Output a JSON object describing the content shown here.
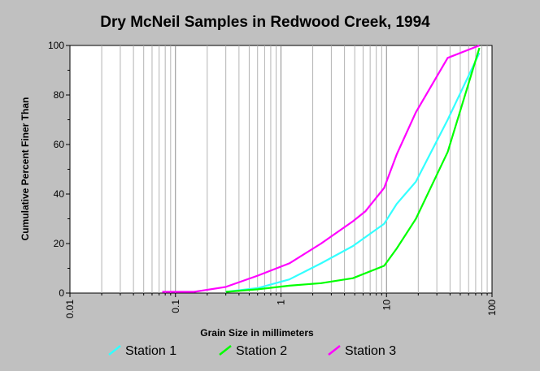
{
  "chart_data": {
    "type": "line",
    "title": "Dry McNeil Samples in Redwood Creek, 1994",
    "xlabel": "Grain Size in millimeters",
    "ylabel": "Cumulative Percent Finer Than",
    "x_scale": "log",
    "xlim": [
      0.01,
      100
    ],
    "ylim": [
      0,
      100
    ],
    "x_ticks": [
      "0.01",
      "0.1",
      "1",
      "10",
      "100"
    ],
    "y_ticks": [
      "0",
      "20",
      "40",
      "60",
      "80",
      "100"
    ],
    "grid": "vertical",
    "legend_position": "bottom",
    "series": [
      {
        "name": "Station 1",
        "color": "#33ffff",
        "x": [
          0.3,
          0.6,
          1.2,
          2.4,
          4.8,
          9.5,
          12.5,
          19,
          38,
          76
        ],
        "y": [
          0.5,
          2,
          5.5,
          12,
          19,
          28,
          36,
          45,
          70,
          97
        ]
      },
      {
        "name": "Station 2",
        "color": "#00ff00",
        "x": [
          0.3,
          0.6,
          1.2,
          2.4,
          4.8,
          9.5,
          12.5,
          19,
          38,
          76
        ],
        "y": [
          0.5,
          1.5,
          3,
          4,
          6,
          11,
          18,
          30,
          57,
          99
        ]
      },
      {
        "name": "Station 3",
        "color": "#ff00ff",
        "x": [
          0.075,
          0.15,
          0.3,
          0.6,
          1.2,
          2.4,
          4.8,
          6.3,
          9.5,
          12.5,
          19,
          38,
          76
        ],
        "y": [
          0.5,
          0.5,
          2.5,
          7,
          12,
          20,
          29,
          33,
          42.5,
          56,
          73,
          95,
          100
        ]
      }
    ]
  }
}
